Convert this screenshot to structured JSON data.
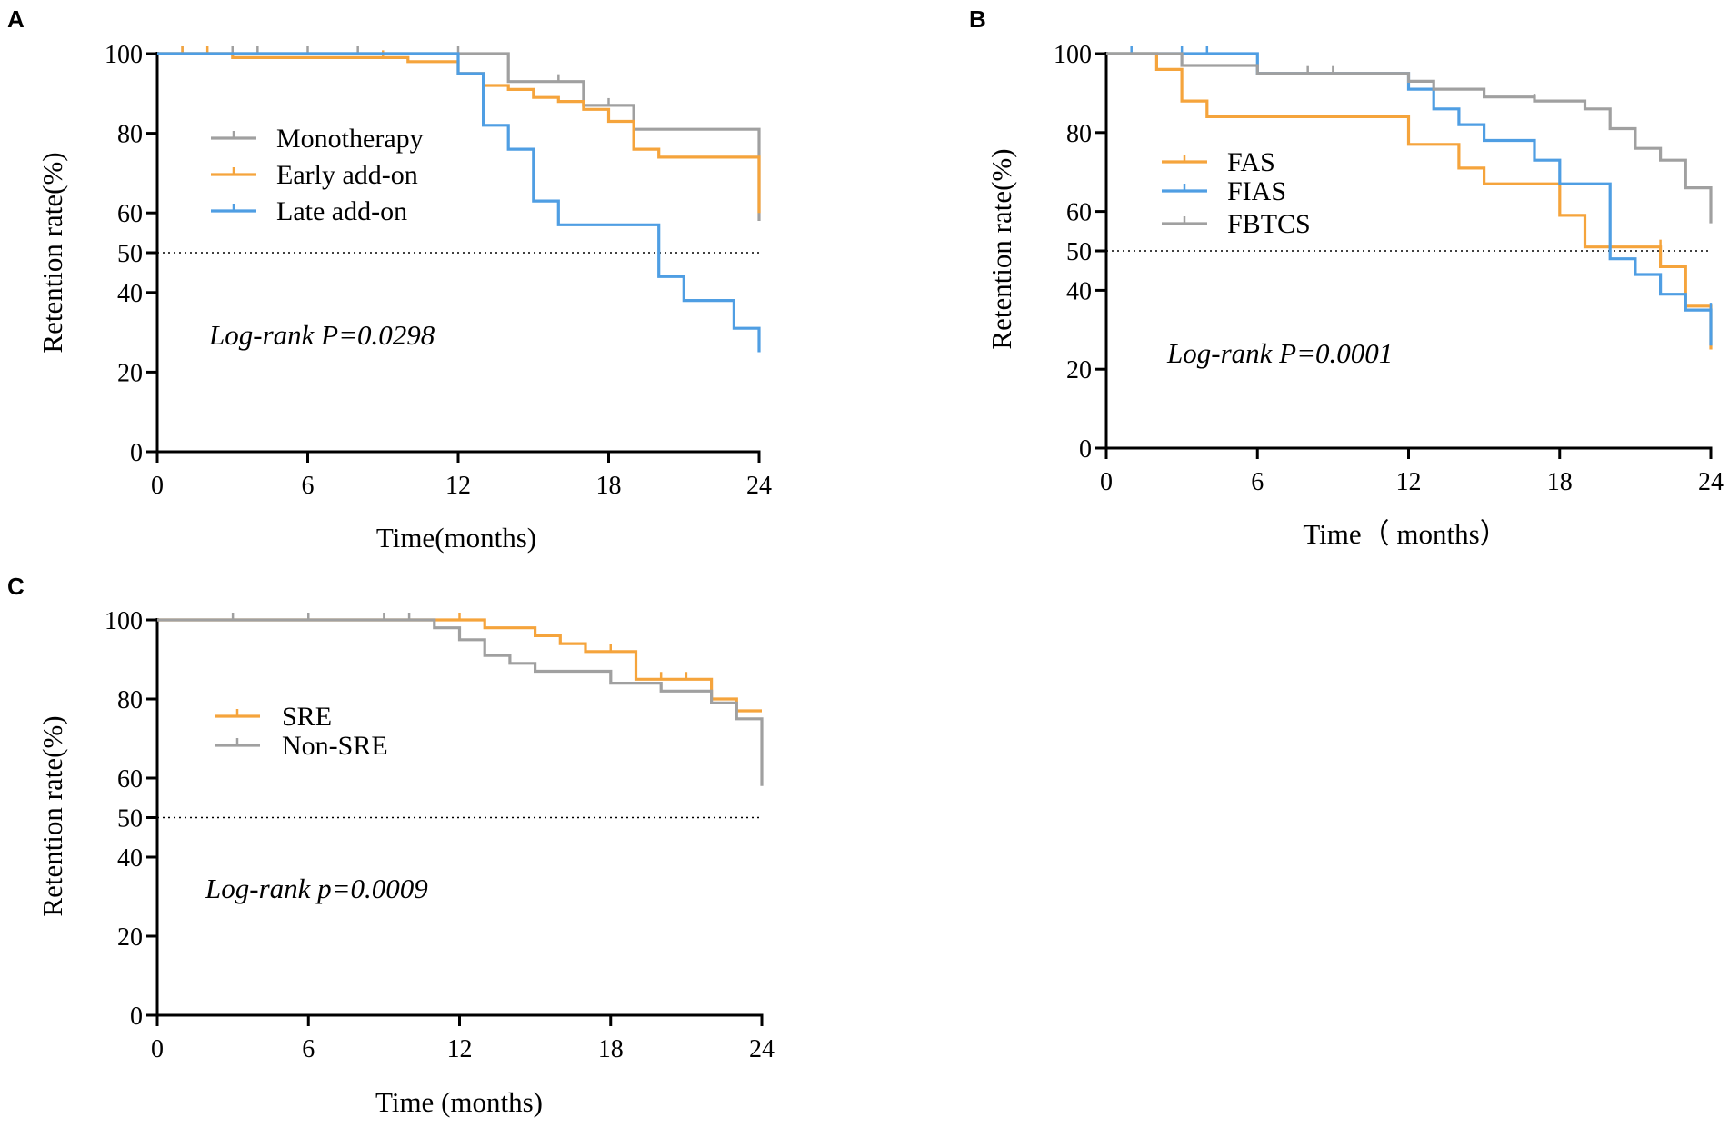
{
  "chart_data": [
    {
      "panel": "A",
      "type": "line",
      "title": "",
      "xlabel": "Time(months)",
      "ylabel": "Retention rate(%)",
      "xlim": [
        0,
        24
      ],
      "ylim": [
        0,
        100
      ],
      "xticks": [
        0,
        6,
        12,
        18,
        24
      ],
      "yticks": [
        0,
        20,
        40,
        50,
        60,
        80,
        100
      ],
      "reference_line": 50,
      "annotation": "Log-rank P=0.0298",
      "legend": "upper-left",
      "series": [
        {
          "name": "Monotherapy",
          "color": "#a0a0a0",
          "steps": [
            [
              0,
              100
            ],
            [
              14,
              100
            ],
            [
              14,
              93
            ],
            [
              17,
              93
            ],
            [
              17,
              87
            ],
            [
              19,
              87
            ],
            [
              19,
              81
            ],
            [
              24,
              81
            ],
            [
              24,
              58
            ]
          ],
          "censors": [
            [
              1,
              100
            ],
            [
              3,
              100
            ],
            [
              4,
              100
            ],
            [
              6,
              100
            ],
            [
              8,
              100
            ],
            [
              12,
              100
            ],
            [
              16,
              93
            ],
            [
              18,
              87
            ]
          ]
        },
        {
          "name": "Early add-on",
          "color": "#f5a43c",
          "steps": [
            [
              0,
              100
            ],
            [
              3,
              100
            ],
            [
              3,
              99
            ],
            [
              10,
              99
            ],
            [
              10,
              98
            ],
            [
              12,
              98
            ],
            [
              12,
              95
            ],
            [
              13,
              95
            ],
            [
              13,
              92
            ],
            [
              14,
              92
            ],
            [
              14,
              91
            ],
            [
              15,
              91
            ],
            [
              15,
              89
            ],
            [
              16,
              89
            ],
            [
              16,
              88
            ],
            [
              17,
              88
            ],
            [
              17,
              86
            ],
            [
              18,
              86
            ],
            [
              18,
              83
            ],
            [
              19,
              83
            ],
            [
              19,
              76
            ],
            [
              20,
              76
            ],
            [
              20,
              74
            ],
            [
              24,
              74
            ],
            [
              24,
              60
            ]
          ],
          "censors": [
            [
              1,
              100
            ],
            [
              2,
              100
            ],
            [
              9,
              99
            ],
            [
              15,
              89
            ]
          ]
        },
        {
          "name": "Late add-on",
          "color": "#4f9ee3",
          "steps": [
            [
              0,
              100
            ],
            [
              12,
              100
            ],
            [
              12,
              95
            ],
            [
              13,
              95
            ],
            [
              13,
              82
            ],
            [
              14,
              82
            ],
            [
              14,
              76
            ],
            [
              15,
              76
            ],
            [
              15,
              63
            ],
            [
              16,
              63
            ],
            [
              16,
              57
            ],
            [
              20,
              57
            ],
            [
              20,
              44
            ],
            [
              21,
              44
            ],
            [
              21,
              38
            ],
            [
              23,
              38
            ],
            [
              23,
              31
            ],
            [
              24,
              31
            ],
            [
              24,
              25
            ]
          ],
          "censors": []
        }
      ]
    },
    {
      "panel": "B",
      "type": "line",
      "title": "",
      "xlabel": "Time（ months）",
      "ylabel": "Retention rate(%)",
      "xlim": [
        0,
        24
      ],
      "ylim": [
        0,
        100
      ],
      "xticks": [
        0,
        6,
        12,
        18,
        24
      ],
      "yticks": [
        0,
        20,
        40,
        50,
        60,
        80,
        100
      ],
      "reference_line": 50,
      "annotation": "Log-rank P=0.0001",
      "legend": "upper-left",
      "series": [
        {
          "name": "FAS",
          "color": "#f5a43c",
          "steps": [
            [
              0,
              100
            ],
            [
              2,
              100
            ],
            [
              2,
              96
            ],
            [
              3,
              96
            ],
            [
              3,
              88
            ],
            [
              4,
              88
            ],
            [
              4,
              84
            ],
            [
              12,
              84
            ],
            [
              12,
              77
            ],
            [
              14,
              77
            ],
            [
              14,
              71
            ],
            [
              15,
              71
            ],
            [
              15,
              67
            ],
            [
              18,
              67
            ],
            [
              18,
              59
            ],
            [
              19,
              59
            ],
            [
              19,
              51
            ],
            [
              22,
              51
            ],
            [
              22,
              46
            ],
            [
              23,
              46
            ],
            [
              23,
              36
            ],
            [
              24,
              36
            ],
            [
              24,
              25
            ]
          ],
          "censors": [
            [
              22,
              51
            ]
          ]
        },
        {
          "name": "FIAS",
          "color": "#4f9ee3",
          "steps": [
            [
              0,
              100
            ],
            [
              6,
              100
            ],
            [
              6,
              95
            ],
            [
              12,
              95
            ],
            [
              12,
              91
            ],
            [
              13,
              91
            ],
            [
              13,
              86
            ],
            [
              14,
              86
            ],
            [
              14,
              82
            ],
            [
              15,
              82
            ],
            [
              15,
              78
            ],
            [
              17,
              78
            ],
            [
              17,
              73
            ],
            [
              18,
              73
            ],
            [
              18,
              67
            ],
            [
              20,
              67
            ],
            [
              20,
              48
            ],
            [
              21,
              48
            ],
            [
              21,
              44
            ],
            [
              22,
              44
            ],
            [
              22,
              39
            ],
            [
              23,
              39
            ],
            [
              23,
              35
            ],
            [
              24,
              35
            ],
            [
              24,
              26
            ]
          ],
          "censors": [
            [
              1,
              100
            ],
            [
              3,
              100
            ],
            [
              4,
              100
            ],
            [
              18,
              67
            ],
            [
              24,
              35
            ]
          ]
        },
        {
          "name": "FBTCS",
          "color": "#a0a0a0",
          "steps": [
            [
              0,
              100
            ],
            [
              3,
              100
            ],
            [
              3,
              97
            ],
            [
              6,
              97
            ],
            [
              6,
              95
            ],
            [
              12,
              95
            ],
            [
              12,
              93
            ],
            [
              13,
              93
            ],
            [
              13,
              91
            ],
            [
              15,
              91
            ],
            [
              15,
              89
            ],
            [
              17,
              89
            ],
            [
              17,
              88
            ],
            [
              19,
              88
            ],
            [
              19,
              86
            ],
            [
              20,
              86
            ],
            [
              20,
              81
            ],
            [
              21,
              81
            ],
            [
              21,
              76
            ],
            [
              22,
              76
            ],
            [
              22,
              73
            ],
            [
              23,
              73
            ],
            [
              23,
              66
            ],
            [
              24,
              66
            ],
            [
              24,
              57
            ]
          ],
          "censors": [
            [
              8,
              95
            ],
            [
              9,
              95
            ],
            [
              13,
              91
            ],
            [
              17,
              88
            ]
          ]
        }
      ]
    },
    {
      "panel": "C",
      "type": "line",
      "title": "",
      "xlabel": "Time (months)",
      "ylabel": "Retention rate(%)",
      "xlim": [
        0,
        24
      ],
      "ylim": [
        0,
        100
      ],
      "xticks": [
        0,
        6,
        12,
        18,
        24
      ],
      "yticks": [
        0,
        20,
        40,
        50,
        60,
        80,
        100
      ],
      "reference_line": 50,
      "annotation": "Log-rank p=0.0009",
      "legend": "upper-left",
      "series": [
        {
          "name": "SRE",
          "color": "#f5a43c",
          "steps": [
            [
              0,
              100
            ],
            [
              13,
              100
            ],
            [
              13,
              98
            ],
            [
              15,
              98
            ],
            [
              15,
              96
            ],
            [
              16,
              96
            ],
            [
              16,
              94
            ],
            [
              17,
              94
            ],
            [
              17,
              92
            ],
            [
              19,
              92
            ],
            [
              19,
              85
            ],
            [
              21,
              85
            ],
            [
              21,
              85
            ],
            [
              22,
              85
            ],
            [
              22,
              80
            ],
            [
              23,
              80
            ],
            [
              23,
              77
            ],
            [
              24,
              77
            ]
          ],
          "censors": [
            [
              12,
              100
            ],
            [
              18,
              92
            ],
            [
              20,
              85
            ],
            [
              21,
              85
            ]
          ]
        },
        {
          "name": "Non-SRE",
          "color": "#a0a0a0",
          "steps": [
            [
              0,
              100
            ],
            [
              11,
              100
            ],
            [
              11,
              98
            ],
            [
              12,
              98
            ],
            [
              12,
              95
            ],
            [
              13,
              95
            ],
            [
              13,
              91
            ],
            [
              14,
              91
            ],
            [
              14,
              89
            ],
            [
              15,
              89
            ],
            [
              15,
              87
            ],
            [
              18,
              87
            ],
            [
              18,
              84
            ],
            [
              20,
              84
            ],
            [
              20,
              82
            ],
            [
              22,
              82
            ],
            [
              22,
              79
            ],
            [
              23,
              79
            ],
            [
              23,
              75
            ],
            [
              24,
              75
            ],
            [
              24,
              58
            ]
          ],
          "censors": [
            [
              3,
              100
            ],
            [
              6,
              100
            ],
            [
              9,
              100
            ],
            [
              10,
              100
            ]
          ]
        }
      ]
    }
  ]
}
